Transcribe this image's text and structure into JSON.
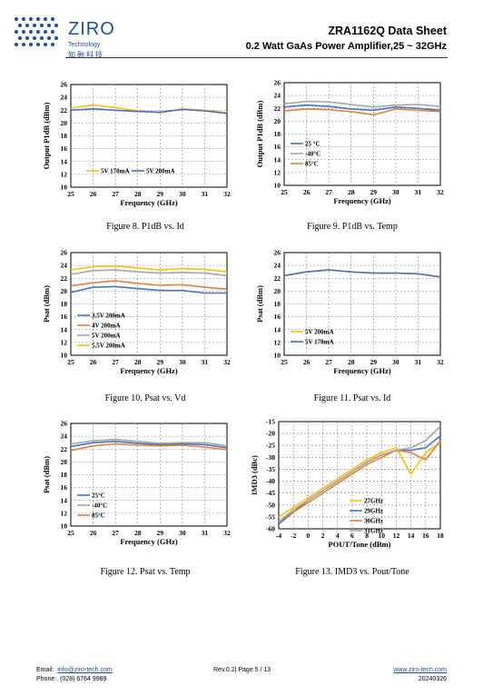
{
  "header": {
    "brand": "ZIRO",
    "brand_sub": "Technology",
    "brand_cn": "知融科技",
    "title": "ZRA1162Q Data Sheet",
    "subtitle": "0.2 Watt GaAs Power Amplifier,25 ~ 32GHz"
  },
  "colors": {
    "blue": "#4472c4",
    "orange": "#ed7d31",
    "gray": "#a5a5a5",
    "gold": "#ffc000",
    "grid": "#7f7f7f"
  },
  "chart_data": [
    {
      "type": "line",
      "caption": "Figure 8. P1dB vs. Id",
      "xlabel": "Frequency (GHz)",
      "ylabel": "Output P1dB (dBm)",
      "x": [
        25,
        26,
        27,
        28,
        29,
        30,
        31,
        32
      ],
      "xlim": [
        25,
        32
      ],
      "ylim": [
        10,
        26
      ],
      "ystep": 2,
      "legend_position": "bottom",
      "series": [
        {
          "name": "5V 170mA",
          "color": "#ffc000",
          "values": [
            22.3,
            22.8,
            22.4,
            21.9,
            21.6,
            22.2,
            22.0,
            21.6
          ]
        },
        {
          "name": "5V 200mA",
          "color": "#4472c4",
          "values": [
            22.0,
            22.2,
            22.0,
            21.8,
            21.7,
            22.1,
            21.9,
            21.5
          ]
        }
      ]
    },
    {
      "type": "line",
      "caption": "Figure 9. P1dB vs. Temp",
      "xlabel": "Frequency (GHz)",
      "ylabel": "Output P1dB (dBm)",
      "x": [
        25,
        26,
        27,
        28,
        29,
        30,
        31,
        32
      ],
      "xlim": [
        25,
        32
      ],
      "ylim": [
        10,
        26
      ],
      "ystep": 2,
      "legend_position": "left",
      "series": [
        {
          "name": "25 °C",
          "color": "#4472c4",
          "values": [
            22.2,
            22.5,
            22.3,
            21.9,
            21.7,
            22.2,
            22.0,
            21.7
          ]
        },
        {
          "name": "-40°C",
          "color": "#a5a5a5",
          "values": [
            22.7,
            23.1,
            23.0,
            22.6,
            22.2,
            22.5,
            22.6,
            22.3
          ]
        },
        {
          "name": "85°C",
          "color": "#ed7d31",
          "values": [
            21.6,
            21.9,
            21.8,
            21.5,
            21.0,
            21.9,
            21.7,
            21.5
          ]
        }
      ]
    },
    {
      "type": "line",
      "caption": "Figure 10. Psat vs. Vd",
      "xlabel": "Frequency (GHz)",
      "ylabel": "Psat (dBm)",
      "x": [
        25,
        26,
        27,
        28,
        29,
        30,
        31,
        32
      ],
      "xlim": [
        25,
        32
      ],
      "ylim": [
        10,
        26
      ],
      "ystep": 2,
      "legend_position": "left",
      "series": [
        {
          "name": "3.5V 200mA",
          "color": "#4472c4",
          "values": [
            19.8,
            20.6,
            20.7,
            20.4,
            20.1,
            20.1,
            19.7,
            19.7
          ]
        },
        {
          "name": "4V   200mA",
          "color": "#ed7d31",
          "values": [
            20.8,
            21.3,
            21.6,
            21.2,
            20.9,
            21.0,
            20.6,
            20.3
          ]
        },
        {
          "name": "5V    200mA",
          "color": "#a5a5a5",
          "values": [
            22.6,
            23.2,
            23.3,
            23.0,
            22.8,
            22.9,
            22.8,
            22.4
          ]
        },
        {
          "name": "5.5V 200mA",
          "color": "#ffc000",
          "values": [
            23.3,
            23.8,
            23.9,
            23.6,
            23.3,
            23.5,
            23.4,
            23.0
          ]
        }
      ]
    },
    {
      "type": "line",
      "caption": "Figure 11. Psat vs. Id",
      "xlabel": "Frequency (GHz)",
      "ylabel": "Psat (dBm)",
      "x": [
        25,
        26,
        27,
        28,
        29,
        30,
        31,
        32
      ],
      "xlim": [
        25,
        32
      ],
      "ylim": [
        10,
        26
      ],
      "ystep": 2,
      "legend_position": "left",
      "series": [
        {
          "name": "5V 200mA",
          "color": "#ffc000",
          "values": [
            22.4,
            23.0,
            23.3,
            23.0,
            22.8,
            22.8,
            22.7,
            22.2
          ]
        },
        {
          "name": "5V 170mA",
          "color": "#4472c4",
          "values": [
            22.4,
            23.0,
            23.3,
            23.0,
            22.8,
            22.8,
            22.7,
            22.2
          ]
        }
      ]
    },
    {
      "type": "line",
      "caption": "Figure 12. Psat vs. Temp",
      "xlabel": "Frequency (GHz)",
      "ylabel": "Psat (dBm)",
      "x": [
        25,
        26,
        27,
        28,
        29,
        30,
        31,
        32
      ],
      "xlim": [
        25,
        32
      ],
      "ylim": [
        10,
        26
      ],
      "ystep": 2,
      "legend_position": "left",
      "series": [
        {
          "name": "25°C",
          "color": "#4472c4",
          "values": [
            22.4,
            23.0,
            23.2,
            22.9,
            22.7,
            22.8,
            22.7,
            22.2
          ]
        },
        {
          "name": "-40°C",
          "color": "#a5a5a5",
          "values": [
            22.8,
            23.3,
            23.5,
            23.2,
            22.9,
            23.0,
            23.0,
            22.5
          ]
        },
        {
          "name": "85°C",
          "color": "#ed7d31",
          "values": [
            21.8,
            22.5,
            22.8,
            22.6,
            22.5,
            22.6,
            22.3,
            21.9
          ]
        }
      ]
    },
    {
      "type": "line",
      "caption": "Figure 13. IMD3 vs. Pout/Tone",
      "xlabel": "POUT/Tone (dBm)",
      "ylabel": "IMD3 (dBc)",
      "x": [
        -4,
        -2,
        0,
        2,
        4,
        6,
        8,
        10,
        12,
        14,
        16,
        18
      ],
      "xlim": [
        -4,
        18
      ],
      "ylim": [
        -60,
        -15
      ],
      "ystep": 5,
      "legend_position": "bottom-right",
      "series": [
        {
          "name": "27GHz",
          "color": "#ffc000",
          "values": [
            -55,
            -51,
            -47,
            -43,
            -39,
            -35,
            -31,
            -28,
            -26,
            -37,
            -28,
            -24
          ]
        },
        {
          "name": "29GHz",
          "color": "#4472c4",
          "values": [
            -58,
            -53,
            -48,
            -44,
            -40,
            -36,
            -32,
            -29,
            -27,
            -27,
            -26,
            -21
          ]
        },
        {
          "name": "30GHz",
          "color": "#ed7d31",
          "values": [
            -57,
            -53,
            -49,
            -45,
            -41,
            -37,
            -33,
            -30,
            -27,
            -28,
            -31,
            -23
          ]
        },
        {
          "name": "31GHz",
          "color": "#a5a5a5",
          "values": [
            -57,
            -52,
            -48,
            -44,
            -40,
            -36,
            -32,
            -29,
            -27,
            -26,
            -23,
            -17
          ]
        }
      ]
    }
  ],
  "footer": {
    "email_label": "Email:",
    "email": "info@ziro-tech.com",
    "phone_label": "Phone:",
    "phone": "(028) 6764 9989",
    "page": "Rev.0.2| Page 5 / 13",
    "website": "www.ziro-tech.com",
    "date": "20240326"
  }
}
